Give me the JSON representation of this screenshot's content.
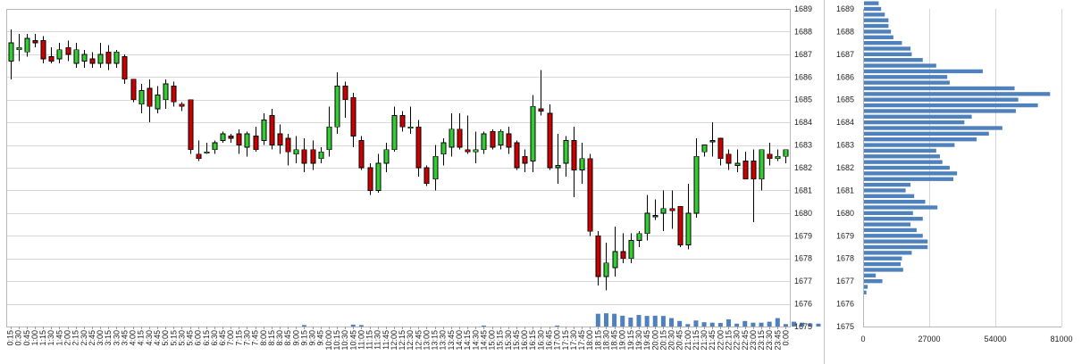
{
  "chart_data": [
    {
      "type": "candlestick",
      "y_ticks": [
        "1675",
        "1676",
        "1677",
        "1678",
        "1679",
        "1680",
        "1681",
        "1682",
        "1683",
        "1684",
        "1685",
        "1686",
        "1687",
        "1688",
        "1689"
      ],
      "ylim": [
        1675,
        1689
      ],
      "x_ticks": [
        "0:15",
        "0:30",
        "0:45",
        "1:00",
        "1:15",
        "1:30",
        "1:45",
        "2:00",
        "2:15",
        "2:30",
        "2:45",
        "3:00",
        "3:15",
        "3:30",
        "3:45",
        "4:00",
        "4:15",
        "4:30",
        "4:45",
        "5:00",
        "5:15",
        "5:30",
        "5:45",
        "6:00",
        "6:15",
        "6:30",
        "6:45",
        "7:00",
        "7:15",
        "7:30",
        "7:45",
        "8:00",
        "8:15",
        "8:30",
        "8:45",
        "9:00",
        "9:15",
        "9:30",
        "9:45",
        "10:00",
        "10:15",
        "10:30",
        "10:45",
        "11:00",
        "11:15",
        "11:30",
        "11:45",
        "12:00",
        "12:15",
        "12:30",
        "12:45",
        "13:00",
        "13:15",
        "13:30",
        "13:45",
        "14:00",
        "14:15",
        "14:30",
        "14:45",
        "15:00",
        "15:15",
        "15:30",
        "15:45",
        "16:00",
        "16:15",
        "16:30",
        "16:45",
        "17:00",
        "17:15",
        "17:30",
        "17:45",
        "18:00",
        "18:15",
        "18:30",
        "18:45",
        "19:00",
        "19:15",
        "19:30",
        "19:45",
        "20:00",
        "20:15",
        "20:30",
        "20:45",
        "21:00",
        "21:15",
        "21:30",
        "21:45",
        "22:00",
        "22:15",
        "22:30",
        "22:45",
        "23:00",
        "23:15",
        "23:30",
        "23:45",
        "0:00"
      ],
      "candles": [
        [
          1686.7,
          1688.1,
          1685.9,
          1687.5
        ],
        [
          1687.2,
          1687.9,
          1686.7,
          1687.3
        ],
        [
          1687.1,
          1687.9,
          1686.9,
          1687.7
        ],
        [
          1687.6,
          1687.9,
          1687.3,
          1687.5
        ],
        [
          1687.6,
          1687.8,
          1686.6,
          1686.8
        ],
        [
          1686.9,
          1687.3,
          1686.6,
          1686.7
        ],
        [
          1686.8,
          1687.5,
          1686.6,
          1687.2
        ],
        [
          1687.3,
          1687.6,
          1686.7,
          1687.0
        ],
        [
          1686.6,
          1687.5,
          1686.4,
          1687.2
        ],
        [
          1686.7,
          1687.2,
          1686.4,
          1687.0
        ],
        [
          1686.8,
          1687.1,
          1686.4,
          1686.6
        ],
        [
          1686.6,
          1687.5,
          1686.4,
          1687.0
        ],
        [
          1687.1,
          1687.4,
          1686.3,
          1686.6
        ],
        [
          1686.6,
          1687.2,
          1686.4,
          1687.1
        ],
        [
          1686.9,
          1687.0,
          1685.7,
          1685.9
        ],
        [
          1685.9,
          1685.9,
          1684.9,
          1685.0
        ],
        [
          1684.8,
          1685.7,
          1684.4,
          1685.4
        ],
        [
          1685.5,
          1685.9,
          1684.0,
          1684.7
        ],
        [
          1684.6,
          1685.6,
          1684.4,
          1685.2
        ],
        [
          1685.0,
          1685.9,
          1684.6,
          1685.7
        ],
        [
          1685.6,
          1685.8,
          1684.7,
          1684.9
        ],
        [
          1684.8,
          1684.9,
          1684.5,
          1684.7
        ],
        [
          1685.0,
          1685.0,
          1682.6,
          1682.8
        ],
        [
          1682.6,
          1683.2,
          1682.3,
          1682.4
        ],
        [
          1682.7,
          1683.1,
          1682.6,
          1682.7
        ],
        [
          1682.8,
          1683.2,
          1682.6,
          1683.1
        ],
        [
          1683.2,
          1683.6,
          1683.1,
          1683.5
        ],
        [
          1683.4,
          1683.5,
          1683.1,
          1683.3
        ],
        [
          1683.5,
          1683.7,
          1682.6,
          1683.0
        ],
        [
          1682.9,
          1683.6,
          1682.5,
          1683.5
        ],
        [
          1683.4,
          1683.8,
          1682.7,
          1682.8
        ],
        [
          1683.2,
          1684.4,
          1683.0,
          1684.1
        ],
        [
          1684.3,
          1684.6,
          1682.8,
          1683.0
        ],
        [
          1683.5,
          1683.9,
          1682.6,
          1683.0
        ],
        [
          1683.3,
          1683.5,
          1682.1,
          1682.7
        ],
        [
          1682.6,
          1683.4,
          1682.2,
          1682.8
        ],
        [
          1682.8,
          1683.3,
          1681.8,
          1682.2
        ],
        [
          1682.8,
          1683.2,
          1681.9,
          1682.2
        ],
        [
          1682.4,
          1682.9,
          1682.2,
          1682.7
        ],
        [
          1682.8,
          1684.7,
          1682.5,
          1683.8
        ],
        [
          1683.8,
          1686.2,
          1683.5,
          1685.6
        ],
        [
          1685.6,
          1685.8,
          1684.2,
          1685.0
        ],
        [
          1685.1,
          1685.3,
          1682.9,
          1683.4
        ],
        [
          1683.2,
          1683.4,
          1681.9,
          1682.0
        ],
        [
          1682.0,
          1682.2,
          1680.8,
          1681.0
        ],
        [
          1681.0,
          1682.6,
          1680.9,
          1682.2
        ],
        [
          1682.2,
          1683.1,
          1681.8,
          1682.8
        ],
        [
          1682.8,
          1684.7,
          1682.7,
          1684.3
        ],
        [
          1684.3,
          1684.5,
          1683.6,
          1683.8
        ],
        [
          1683.8,
          1684.7,
          1683.5,
          1683.8
        ],
        [
          1683.8,
          1684.1,
          1681.6,
          1682.0
        ],
        [
          1682.0,
          1682.1,
          1681.2,
          1681.3
        ],
        [
          1681.5,
          1683.0,
          1681.0,
          1682.5
        ],
        [
          1682.6,
          1683.3,
          1682.1,
          1683.1
        ],
        [
          1682.9,
          1684.4,
          1682.5,
          1683.7
        ],
        [
          1683.7,
          1684.4,
          1682.8,
          1682.9
        ],
        [
          1682.8,
          1684.3,
          1682.6,
          1682.7
        ],
        [
          1682.7,
          1683.6,
          1682.2,
          1682.8
        ],
        [
          1682.8,
          1683.6,
          1682.6,
          1683.5
        ],
        [
          1683.6,
          1683.7,
          1682.8,
          1682.9
        ],
        [
          1683.0,
          1683.7,
          1682.8,
          1683.6
        ],
        [
          1683.5,
          1683.8,
          1682.6,
          1682.9
        ],
        [
          1683.1,
          1683.2,
          1681.9,
          1682.0
        ],
        [
          1682.5,
          1682.8,
          1681.8,
          1682.2
        ],
        [
          1682.3,
          1685.2,
          1681.8,
          1684.7
        ],
        [
          1684.6,
          1686.3,
          1684.3,
          1684.5
        ],
        [
          1684.4,
          1684.8,
          1681.9,
          1682.0
        ],
        [
          1682.0,
          1683.5,
          1681.3,
          1682.1
        ],
        [
          1682.2,
          1683.4,
          1681.6,
          1683.2
        ],
        [
          1683.2,
          1683.8,
          1680.7,
          1681.9
        ],
        [
          1681.9,
          1683.1,
          1681.3,
          1682.4
        ],
        [
          1682.4,
          1682.6,
          1679.0,
          1679.2
        ],
        [
          1679.0,
          1679.2,
          1676.8,
          1677.2
        ],
        [
          1677.2,
          1678.7,
          1676.6,
          1677.8
        ],
        [
          1677.6,
          1679.4,
          1677.2,
          1678.3
        ],
        [
          1678.3,
          1679.1,
          1677.8,
          1678.0
        ],
        [
          1678.0,
          1679.1,
          1677.8,
          1678.8
        ],
        [
          1678.8,
          1679.2,
          1678.5,
          1679.1
        ],
        [
          1679.1,
          1680.8,
          1678.8,
          1680.0
        ],
        [
          1679.9,
          1680.6,
          1679.7,
          1679.9
        ],
        [
          1680.0,
          1681.0,
          1679.2,
          1680.2
        ],
        [
          1680.2,
          1681.0,
          1679.3,
          1680.1
        ],
        [
          1680.3,
          1680.3,
          1678.5,
          1678.6
        ],
        [
          1678.6,
          1681.3,
          1678.4,
          1680.0
        ],
        [
          1680.0,
          1683.3,
          1679.8,
          1682.5
        ],
        [
          1682.7,
          1683.0,
          1682.5,
          1683.0
        ],
        [
          1683.2,
          1684.0,
          1682.5,
          1683.2
        ],
        [
          1683.3,
          1683.3,
          1682.1,
          1682.4
        ],
        [
          1682.6,
          1682.8,
          1681.9,
          1682.2
        ],
        [
          1682.1,
          1682.8,
          1681.8,
          1682.2
        ],
        [
          1682.3,
          1682.7,
          1681.5,
          1681.5
        ],
        [
          1682.3,
          1682.8,
          1679.6,
          1681.5
        ],
        [
          1681.5,
          1682.8,
          1681.0,
          1682.8
        ],
        [
          1682.6,
          1683.1,
          1682.1,
          1682.4
        ],
        [
          1682.4,
          1682.8,
          1682.3,
          1682.5
        ],
        [
          1682.5,
          1682.7,
          1682.2,
          1682.8
        ]
      ],
      "volume": [
        0,
        0,
        0,
        0,
        0,
        0,
        0,
        0,
        0,
        0,
        0,
        0,
        0,
        0,
        0,
        0,
        0,
        0,
        0,
        0,
        0,
        0,
        0,
        0,
        0,
        0,
        0,
        0,
        0,
        0,
        0,
        0,
        0,
        0,
        0,
        0,
        0.6,
        0,
        0,
        0,
        0,
        0,
        0.8,
        0.6,
        0,
        0,
        0,
        0,
        0,
        0,
        0,
        0,
        0,
        0,
        0,
        0,
        0,
        0,
        0.4,
        0,
        0,
        0,
        0,
        0,
        0,
        0,
        0,
        0.4,
        0,
        0,
        0,
        0,
        5.3,
        5.5,
        5.3,
        4.5,
        3.7,
        4.8,
        4.4,
        4.5,
        4.4,
        3.5,
        2.3,
        1.0,
        2.5,
        1.8,
        1.6,
        1.5,
        3.0,
        1.2,
        2.3,
        1.6,
        1.6,
        2.0,
        3.5,
        1.0,
        2.0,
        1.6,
        1.2,
        1.2,
        2.0,
        9.5,
        4.4
      ],
      "up_color": "#33cc33",
      "down_color": "#cc0000",
      "volume_color": "#4f81bd"
    },
    {
      "type": "bar",
      "orientation": "horizontal",
      "x_ticks": [
        "0",
        "27000",
        "54000",
        "81000"
      ],
      "xlim": [
        0,
        81000
      ],
      "y_ticks": [
        "1675",
        "1676",
        "1677",
        "1678",
        "1679",
        "1680",
        "1681",
        "1682",
        "1683",
        "1684",
        "1685",
        "1686",
        "1687",
        "1688",
        "1689"
      ],
      "ylim": [
        1675,
        1689
      ],
      "price_step": 0.25,
      "price_start": 1676.5,
      "volumes": [
        1000,
        1500,
        7500,
        4800,
        16000,
        15000,
        15500,
        19500,
        26000,
        26000,
        24000,
        21500,
        19000,
        24000,
        20000,
        30000,
        25000,
        20500,
        17000,
        19000,
        36500,
        38000,
        35000,
        32000,
        31000,
        29500,
        37000,
        46000,
        51000,
        56500,
        41000,
        44000,
        62000,
        71000,
        63000,
        76000,
        61500,
        35000,
        34000,
        48500,
        29500,
        24000,
        19500,
        19000,
        15500,
        12000,
        11000,
        10000,
        10000,
        8500,
        7000,
        6000,
        5500,
        3500,
        3000,
        3000,
        3500,
        2500,
        2000,
        2000,
        1500,
        1000,
        1000
      ],
      "bar_color": "#4f81bd"
    }
  ]
}
